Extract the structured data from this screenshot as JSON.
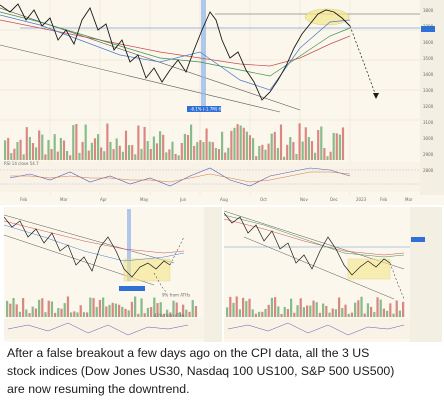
{
  "post": {
    "caption_lines": [
      "After a false breakout a few days ago on the CPI data, all the 3 US",
      "stock indices (Dow Jones US30, Nasdaq 100 US100, S&P 500 US500)",
      "are now resuming the downtrend."
    ]
  },
  "colors": {
    "chart_bg": "#fbf7ec",
    "price_line": "#1a1a1a",
    "ma_blue": "#4a7bd0",
    "ma_red": "#c94f4f",
    "ma_green": "#3f8f4f",
    "highlight_box": "#f5e78a",
    "vertical_band": "#8fb3e8",
    "volume_green": "#5fa86a",
    "volume_red": "#d0625e"
  },
  "icons": [
    "dashed-projection-arrow"
  ]
}
